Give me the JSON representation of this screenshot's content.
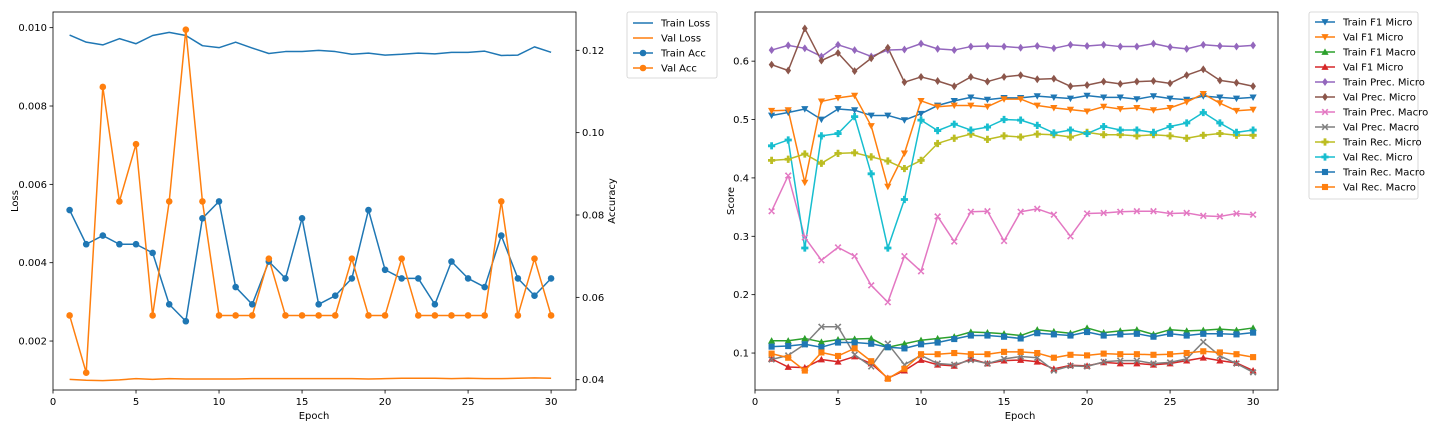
{
  "chart_data": [
    {
      "type": "line",
      "xlabel": "Epoch",
      "ylabel": "Loss",
      "y2label": "Accuracy",
      "xlim": [
        0,
        31.5
      ],
      "ylim": [
        0.00075,
        0.0104
      ],
      "y2lim": [
        0.0375,
        0.1293
      ],
      "xticks": [
        0,
        5,
        10,
        15,
        20,
        25,
        30
      ],
      "yticks": [
        0.002,
        0.004,
        0.006,
        0.008,
        0.01
      ],
      "ytick_labels": [
        "0.002",
        "0.004",
        "0.006",
        "0.008",
        "0.010"
      ],
      "y2ticks": [
        0.04,
        0.06,
        0.08,
        0.1,
        0.12
      ],
      "y2tick_labels": [
        "0.04",
        "0.06",
        "0.08",
        "0.10",
        "0.12"
      ],
      "legend_position": "outside-top-right",
      "x": [
        1,
        2,
        3,
        4,
        5,
        6,
        7,
        8,
        9,
        10,
        11,
        12,
        13,
        14,
        15,
        16,
        17,
        18,
        19,
        20,
        21,
        22,
        23,
        24,
        25,
        26,
        27,
        28,
        29,
        30
      ],
      "series": [
        {
          "name": "Train Loss",
          "axis": "left",
          "color": "#1f77b4",
          "marker": "none",
          "values": [
            0.00981,
            0.00963,
            0.00956,
            0.00972,
            0.00959,
            0.0098,
            0.00988,
            0.0098,
            0.00954,
            0.00949,
            0.00963,
            0.00948,
            0.00934,
            0.00939,
            0.00939,
            0.00942,
            0.00939,
            0.00932,
            0.00935,
            0.0093,
            0.00932,
            0.00935,
            0.00933,
            0.00937,
            0.00937,
            0.0094,
            0.00929,
            0.0093,
            0.00951,
            0.00937
          ]
        },
        {
          "name": "Val Loss",
          "axis": "left",
          "color": "#ff7f0e",
          "marker": "none",
          "values": [
            0.00102,
            0.001,
            0.00099,
            0.00101,
            0.00104,
            0.00102,
            0.00104,
            0.00103,
            0.00103,
            0.00103,
            0.00103,
            0.00104,
            0.00104,
            0.00104,
            0.00104,
            0.00104,
            0.00104,
            0.00104,
            0.00103,
            0.00104,
            0.00105,
            0.00105,
            0.00105,
            0.00104,
            0.00105,
            0.00104,
            0.00104,
            0.00105,
            0.00106,
            0.00105
          ]
        },
        {
          "name": "Train Acc",
          "axis": "right",
          "color": "#1f77b4",
          "marker": "circle",
          "values": [
            0.0812,
            0.0729,
            0.075,
            0.0729,
            0.0729,
            0.0708,
            0.0583,
            0.0542,
            0.0792,
            0.0833,
            0.0625,
            0.0583,
            0.0687,
            0.0646,
            0.0792,
            0.0583,
            0.0604,
            0.0646,
            0.0812,
            0.0667,
            0.0646,
            0.0646,
            0.0583,
            0.0687,
            0.0646,
            0.0625,
            0.075,
            0.0646,
            0.0604,
            0.0646
          ]
        },
        {
          "name": "Val Acc",
          "axis": "right",
          "color": "#ff7f0e",
          "marker": "circle",
          "values": [
            0.0556,
            0.0417,
            0.1111,
            0.0833,
            0.0972,
            0.0556,
            0.0833,
            0.125,
            0.0833,
            0.0556,
            0.0556,
            0.0556,
            0.0694,
            0.0556,
            0.0556,
            0.0556,
            0.0556,
            0.0694,
            0.0556,
            0.0556,
            0.0694,
            0.0556,
            0.0556,
            0.0556,
            0.0556,
            0.0556,
            0.0833,
            0.0556,
            0.0694,
            0.0556
          ]
        }
      ]
    },
    {
      "type": "line",
      "xlabel": "Epoch",
      "ylabel": "Score",
      "xlim": [
        0,
        31.5
      ],
      "ylim": [
        0.0367,
        0.6842
      ],
      "xticks": [
        0,
        5,
        10,
        15,
        20,
        25,
        30
      ],
      "yticks": [
        0.1,
        0.2,
        0.3,
        0.4,
        0.5,
        0.6
      ],
      "ytick_labels": [
        "0.1",
        "0.2",
        "0.3",
        "0.4",
        "0.5",
        "0.6"
      ],
      "legend_position": "outside-top-right",
      "x": [
        1,
        2,
        3,
        4,
        5,
        6,
        7,
        8,
        9,
        10,
        11,
        12,
        13,
        14,
        15,
        16,
        17,
        18,
        19,
        20,
        21,
        22,
        23,
        24,
        25,
        26,
        27,
        28,
        29,
        30
      ],
      "series": [
        {
          "name": "Train F1 Micro",
          "color": "#1f77b4",
          "marker": "tri_down",
          "values": [
            0.507,
            0.512,
            0.518,
            0.5,
            0.518,
            0.516,
            0.507,
            0.507,
            0.499,
            0.51,
            0.524,
            0.532,
            0.538,
            0.534,
            0.537,
            0.537,
            0.54,
            0.538,
            0.536,
            0.541,
            0.538,
            0.538,
            0.535,
            0.54,
            0.536,
            0.534,
            0.54,
            0.538,
            0.536,
            0.538
          ]
        },
        {
          "name": "Val F1 Micro",
          "color": "#ff7f0e",
          "marker": "tri_down",
          "values": [
            0.515,
            0.516,
            0.392,
            0.531,
            0.537,
            0.541,
            0.489,
            0.385,
            0.442,
            0.532,
            0.522,
            0.524,
            0.524,
            0.522,
            0.535,
            0.535,
            0.524,
            0.52,
            0.517,
            0.514,
            0.522,
            0.518,
            0.52,
            0.516,
            0.52,
            0.53,
            0.544,
            0.528,
            0.515,
            0.517
          ]
        },
        {
          "name": "Train F1 Macro",
          "color": "#2ca02c",
          "marker": "tri_up",
          "values": [
            0.121,
            0.121,
            0.125,
            0.119,
            0.123,
            0.124,
            0.125,
            0.11,
            0.116,
            0.122,
            0.125,
            0.128,
            0.136,
            0.135,
            0.133,
            0.13,
            0.14,
            0.137,
            0.134,
            0.143,
            0.135,
            0.138,
            0.14,
            0.132,
            0.14,
            0.138,
            0.139,
            0.141,
            0.139,
            0.143
          ]
        },
        {
          "name": "Val F1 Micro",
          "color": "#d62728",
          "marker": "tri_up",
          "values": [
            0.09,
            0.076,
            0.075,
            0.089,
            0.085,
            0.094,
            0.082,
            0.057,
            0.07,
            0.088,
            0.08,
            0.078,
            0.09,
            0.082,
            0.087,
            0.088,
            0.085,
            0.073,
            0.079,
            0.078,
            0.084,
            0.082,
            0.082,
            0.08,
            0.082,
            0.087,
            0.092,
            0.087,
            0.083,
            0.07
          ]
        },
        {
          "name": "Train Prec. Micro",
          "color": "#9467bd",
          "marker": "diamond",
          "values": [
            0.619,
            0.627,
            0.622,
            0.608,
            0.628,
            0.619,
            0.608,
            0.619,
            0.62,
            0.63,
            0.621,
            0.619,
            0.625,
            0.626,
            0.625,
            0.623,
            0.626,
            0.622,
            0.628,
            0.626,
            0.628,
            0.625,
            0.625,
            0.63,
            0.624,
            0.621,
            0.628,
            0.626,
            0.625,
            0.627
          ]
        },
        {
          "name": "Val Prec. Micro",
          "color": "#8c564b",
          "marker": "diamond",
          "values": [
            0.594,
            0.584,
            0.656,
            0.601,
            0.614,
            0.583,
            0.605,
            0.623,
            0.564,
            0.573,
            0.566,
            0.557,
            0.573,
            0.565,
            0.573,
            0.576,
            0.569,
            0.57,
            0.557,
            0.559,
            0.565,
            0.561,
            0.565,
            0.566,
            0.562,
            0.576,
            0.586,
            0.567,
            0.563,
            0.557
          ]
        },
        {
          "name": "Train Prec. Macro",
          "color": "#e377c2",
          "marker": "x",
          "values": [
            0.343,
            0.404,
            0.298,
            0.259,
            0.281,
            0.266,
            0.216,
            0.187,
            0.266,
            0.24,
            0.334,
            0.291,
            0.342,
            0.343,
            0.292,
            0.342,
            0.347,
            0.337,
            0.3,
            0.339,
            0.34,
            0.342,
            0.343,
            0.343,
            0.339,
            0.34,
            0.335,
            0.334,
            0.339,
            0.337
          ]
        },
        {
          "name": "Val Prec. Macro",
          "color": "#7f7f7f",
          "marker": "x",
          "values": [
            0.089,
            0.096,
            0.115,
            0.145,
            0.145,
            0.097,
            0.077,
            0.116,
            0.08,
            0.096,
            0.082,
            0.08,
            0.088,
            0.082,
            0.09,
            0.094,
            0.092,
            0.07,
            0.078,
            0.077,
            0.085,
            0.087,
            0.087,
            0.082,
            0.084,
            0.09,
            0.119,
            0.095,
            0.082,
            0.067
          ]
        },
        {
          "name": "Train Rec. Micro",
          "color": "#bcbd22",
          "marker": "plus",
          "values": [
            0.43,
            0.432,
            0.441,
            0.425,
            0.442,
            0.443,
            0.436,
            0.429,
            0.416,
            0.43,
            0.459,
            0.468,
            0.475,
            0.466,
            0.472,
            0.47,
            0.475,
            0.474,
            0.47,
            0.478,
            0.474,
            0.474,
            0.472,
            0.474,
            0.472,
            0.468,
            0.473,
            0.476,
            0.473,
            0.473
          ]
        },
        {
          "name": "Val Rec. Micro",
          "color": "#17becf",
          "marker": "plus",
          "values": [
            0.455,
            0.465,
            0.28,
            0.472,
            0.476,
            0.505,
            0.407,
            0.28,
            0.363,
            0.499,
            0.481,
            0.492,
            0.482,
            0.487,
            0.5,
            0.499,
            0.49,
            0.477,
            0.482,
            0.476,
            0.488,
            0.482,
            0.482,
            0.478,
            0.488,
            0.494,
            0.512,
            0.494,
            0.478,
            0.482
          ]
        },
        {
          "name": "Train Rec. Macro",
          "color": "#1f77b4",
          "marker": "square",
          "values": [
            0.111,
            0.112,
            0.115,
            0.11,
            0.118,
            0.118,
            0.116,
            0.11,
            0.108,
            0.115,
            0.118,
            0.124,
            0.13,
            0.13,
            0.128,
            0.125,
            0.134,
            0.132,
            0.13,
            0.136,
            0.13,
            0.132,
            0.133,
            0.128,
            0.133,
            0.13,
            0.133,
            0.133,
            0.132,
            0.135
          ]
        },
        {
          "name": "Val Rec. Macro",
          "color": "#ff7f0e",
          "marker": "square",
          "values": [
            0.099,
            0.092,
            0.07,
            0.101,
            0.095,
            0.108,
            0.086,
            0.056,
            0.073,
            0.098,
            0.098,
            0.1,
            0.098,
            0.098,
            0.102,
            0.102,
            0.1,
            0.092,
            0.097,
            0.096,
            0.099,
            0.098,
            0.098,
            0.097,
            0.098,
            0.1,
            0.103,
            0.101,
            0.098,
            0.093
          ]
        }
      ]
    }
  ]
}
